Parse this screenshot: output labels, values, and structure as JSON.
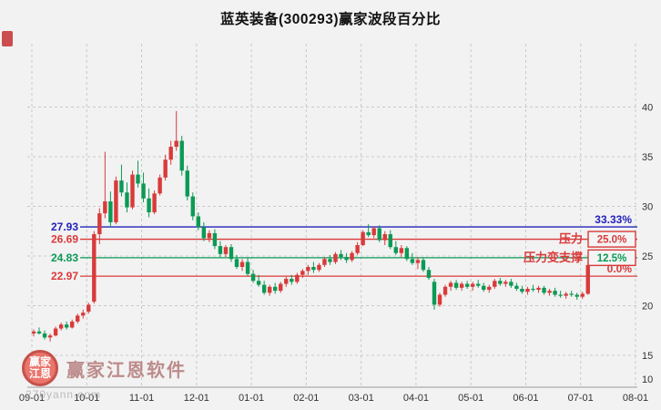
{
  "chart_data": {
    "type": "candlestick",
    "title": "蓝英装备(300293)赢家波段百分比",
    "x_labels": [
      "09-01",
      "10-01",
      "11-01",
      "12-01",
      "01-01",
      "02-01",
      "03-01",
      "04-01",
      "05-01",
      "06-01",
      "07-01",
      "08-01"
    ],
    "y_ticks": [
      40,
      35,
      30,
      25,
      20,
      15,
      10
    ],
    "y_range": [
      10,
      40
    ],
    "y_axis_side": "right",
    "grid": "dashed",
    "candles_per_month": 10,
    "up_color": "#d93a3a",
    "down_color": "#0b9a55",
    "levels": [
      {
        "price": 27.93,
        "left_label": "27.93",
        "color": "#2222bb",
        "pct": "33.33%",
        "pct_color": "#2222bb",
        "boxed": false
      },
      {
        "price": 26.69,
        "left_label": "26.69",
        "color": "#d93a3a",
        "pct": "25.0%",
        "pct_color": "#d93a3a",
        "boxed": true,
        "tag": "压力",
        "tag_color": "#d93a3a"
      },
      {
        "price": 24.83,
        "left_label": "24.83",
        "color": "#0b9a55",
        "pct": "12.5%",
        "pct_color": "#0b9a55",
        "boxed": true,
        "tag": "压力变支撑",
        "tag_color": "#d93a3a"
      },
      {
        "price": 22.97,
        "left_label": "22.97",
        "color": "#d93a3a",
        "pct": "0.0%",
        "pct_color": "#d93a3a",
        "boxed": false
      }
    ],
    "candles": [
      [
        17.2,
        17.6,
        16.9,
        17.4
      ],
      [
        17.4,
        17.8,
        17.1,
        17.2
      ],
      [
        17.2,
        17.5,
        16.6,
        16.8
      ],
      [
        16.8,
        17.2,
        16.4,
        17.0
      ],
      [
        17.0,
        17.9,
        16.9,
        17.7
      ],
      [
        17.7,
        18.3,
        17.5,
        18.1
      ],
      [
        18.1,
        18.4,
        17.6,
        17.8
      ],
      [
        17.8,
        18.6,
        17.7,
        18.4
      ],
      [
        18.4,
        19.2,
        18.2,
        19.0
      ],
      [
        19.0,
        19.6,
        18.7,
        19.3
      ],
      [
        19.4,
        20.3,
        19.2,
        20.1
      ],
      [
        20.4,
        27.5,
        20.2,
        27.2
      ],
      [
        27.2,
        29.8,
        26.2,
        29.3
      ],
      [
        29.3,
        35.5,
        28.8,
        30.5
      ],
      [
        30.5,
        31.5,
        27.9,
        28.4
      ],
      [
        28.4,
        33.0,
        28.2,
        32.6
      ],
      [
        32.6,
        34.2,
        31.0,
        31.4
      ],
      [
        31.4,
        32.4,
        29.4,
        29.9
      ],
      [
        29.9,
        33.6,
        29.7,
        33.2
      ],
      [
        33.2,
        34.6,
        31.9,
        32.3
      ],
      [
        32.3,
        33.4,
        30.4,
        30.8
      ],
      [
        30.8,
        31.8,
        28.9,
        29.4
      ],
      [
        29.4,
        31.6,
        29.2,
        31.3
      ],
      [
        31.3,
        33.2,
        31.1,
        32.9
      ],
      [
        32.9,
        35.2,
        32.6,
        34.7
      ],
      [
        34.7,
        36.6,
        34.2,
        36.0
      ],
      [
        36.0,
        39.6,
        35.6,
        36.6
      ],
      [
        36.6,
        37.1,
        33.1,
        33.6
      ],
      [
        33.6,
        34.1,
        30.6,
        31.0
      ],
      [
        31.0,
        31.4,
        28.6,
        29.0
      ],
      [
        29.0,
        29.4,
        27.6,
        27.9
      ],
      [
        27.9,
        28.4,
        26.5,
        26.8
      ],
      [
        26.8,
        27.6,
        26.4,
        27.3
      ],
      [
        27.3,
        27.7,
        25.7,
        26.0
      ],
      [
        26.0,
        26.5,
        24.9,
        25.2
      ],
      [
        25.2,
        26.1,
        24.9,
        25.9
      ],
      [
        25.9,
        26.2,
        24.4,
        24.7
      ],
      [
        24.7,
        25.1,
        23.7,
        23.9
      ],
      [
        23.9,
        24.7,
        23.5,
        24.4
      ],
      [
        24.4,
        24.8,
        23.0,
        23.2
      ],
      [
        23.2,
        23.6,
        22.3,
        22.5
      ],
      [
        22.5,
        23.1,
        21.9,
        22.1
      ],
      [
        22.1,
        22.5,
        21.1,
        21.3
      ],
      [
        21.3,
        22.1,
        21.0,
        21.9
      ],
      [
        21.9,
        22.3,
        21.2,
        21.5
      ],
      [
        21.5,
        22.4,
        21.3,
        22.2
      ],
      [
        22.2,
        22.9,
        21.9,
        22.7
      ],
      [
        22.7,
        23.1,
        22.1,
        22.4
      ],
      [
        22.4,
        23.3,
        22.2,
        23.1
      ],
      [
        23.1,
        23.7,
        22.8,
        23.5
      ],
      [
        23.5,
        24.1,
        23.1,
        23.9
      ],
      [
        23.9,
        24.4,
        23.3,
        23.6
      ],
      [
        23.6,
        24.3,
        23.4,
        24.1
      ],
      [
        24.1,
        24.9,
        23.9,
        24.7
      ],
      [
        24.7,
        25.1,
        24.1,
        24.4
      ],
      [
        24.4,
        25.4,
        24.2,
        25.2
      ],
      [
        25.2,
        25.6,
        24.6,
        24.9
      ],
      [
        24.9,
        25.3,
        24.3,
        24.6
      ],
      [
        24.6,
        25.5,
        24.4,
        25.3
      ],
      [
        25.3,
        26.4,
        25.1,
        26.1
      ],
      [
        26.1,
        27.6,
        26.0,
        27.4
      ],
      [
        27.4,
        28.2,
        26.9,
        27.1
      ],
      [
        27.1,
        28.0,
        26.8,
        27.8
      ],
      [
        27.8,
        28.1,
        26.4,
        26.6
      ],
      [
        26.6,
        27.5,
        26.1,
        27.2
      ],
      [
        27.2,
        27.6,
        25.7,
        25.9
      ],
      [
        25.9,
        26.5,
        25.1,
        25.3
      ],
      [
        25.3,
        26.1,
        24.9,
        25.8
      ],
      [
        25.8,
        26.0,
        24.5,
        24.7
      ],
      [
        24.7,
        25.3,
        24.1,
        24.3
      ],
      [
        24.3,
        24.9,
        23.7,
        24.6
      ],
      [
        24.6,
        24.8,
        23.4,
        23.6
      ],
      [
        23.6,
        23.9,
        22.6,
        22.8
      ],
      [
        22.4,
        22.7,
        19.6,
        20.1
      ],
      [
        20.1,
        21.3,
        19.9,
        21.1
      ],
      [
        21.1,
        22.1,
        20.9,
        21.9
      ],
      [
        21.9,
        22.5,
        21.5,
        22.3
      ],
      [
        22.3,
        22.6,
        21.6,
        21.8
      ],
      [
        21.8,
        22.4,
        21.5,
        22.2
      ],
      [
        22.2,
        22.5,
        21.7,
        21.9
      ],
      [
        21.9,
        22.4,
        21.5,
        22.2
      ],
      [
        22.2,
        22.6,
        21.8,
        22.0
      ],
      [
        22.0,
        22.3,
        21.4,
        21.6
      ],
      [
        21.6,
        22.1,
        21.3,
        21.9
      ],
      [
        21.9,
        22.7,
        21.7,
        22.5
      ],
      [
        22.5,
        22.8,
        22.0,
        22.2
      ],
      [
        22.2,
        22.6,
        21.9,
        22.4
      ],
      [
        22.4,
        22.7,
        21.8,
        22.0
      ],
      [
        22.0,
        22.3,
        21.5,
        21.7
      ],
      [
        21.7,
        22.0,
        21.2,
        21.4
      ],
      [
        21.4,
        21.9,
        21.1,
        21.7
      ],
      [
        21.7,
        22.1,
        21.4,
        21.6
      ],
      [
        21.6,
        22.0,
        21.3,
        21.8
      ],
      [
        21.8,
        22.0,
        21.1,
        21.3
      ],
      [
        21.3,
        21.7,
        21.0,
        21.5
      ],
      [
        21.5,
        21.8,
        20.9,
        21.1
      ],
      [
        21.1,
        21.5,
        20.8,
        21.0
      ],
      [
        21.0,
        21.4,
        20.7,
        21.2
      ],
      [
        21.2,
        21.5,
        20.9,
        21.1
      ],
      [
        21.1,
        21.3,
        20.6,
        20.9
      ],
      [
        20.9,
        21.4,
        20.7,
        21.2
      ],
      [
        21.2,
        24.5,
        21.1,
        24.1
      ]
    ]
  },
  "watermark": {
    "logo_text": "赢家江恩",
    "text": "赢家江恩软件",
    "url": "270yann.com"
  }
}
